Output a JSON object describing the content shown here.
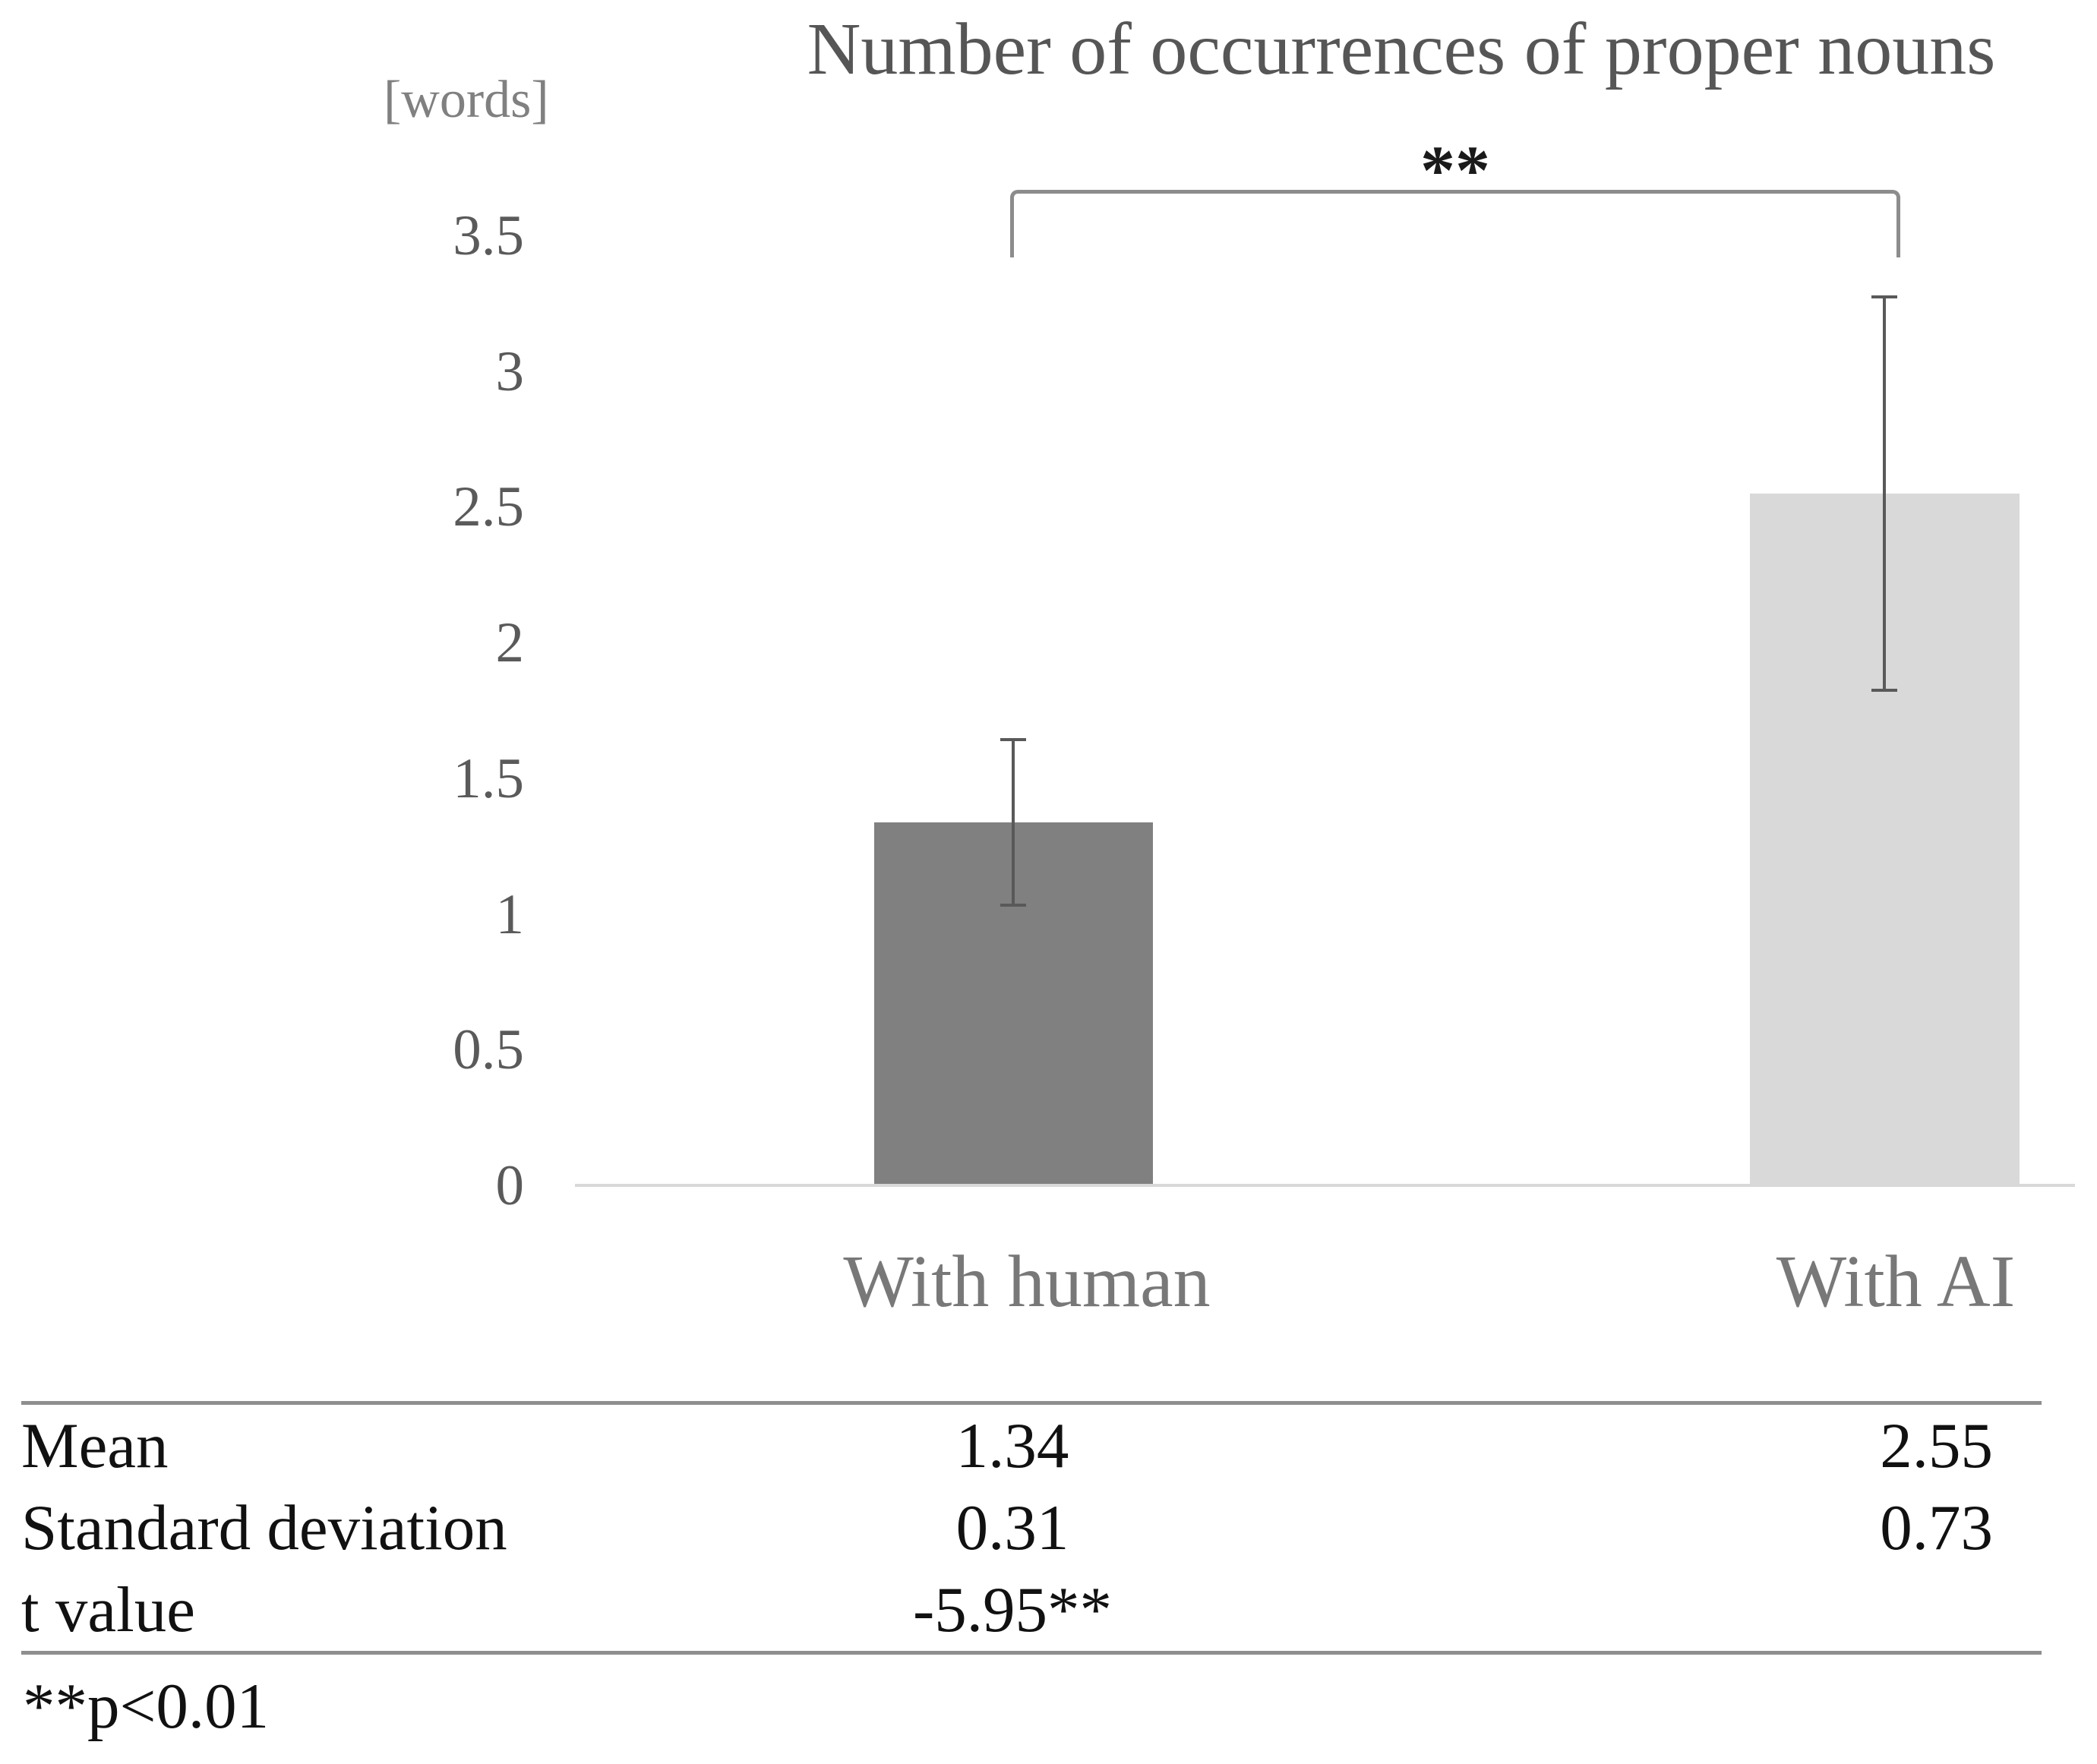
{
  "chart_data": {
    "type": "bar",
    "title": "Number of occurrences of proper nouns",
    "axis_unit_label": "[words]",
    "categories": [
      "With human",
      "With AI"
    ],
    "series": [
      {
        "name": "Mean",
        "values": [
          1.34,
          2.55
        ],
        "stdev": [
          0.31,
          0.73
        ]
      }
    ],
    "bar_colors": [
      "#808080",
      "#d9d9d9"
    ],
    "yticks": [
      "3.5",
      "3",
      "2.5",
      "2",
      "1.5",
      "1",
      "0.5",
      "0"
    ],
    "ylim": [
      0,
      3.5
    ],
    "grid": false,
    "legend": "none",
    "significance": {
      "label": "**",
      "compares": [
        "With human",
        "With AI"
      ]
    }
  },
  "stats_table": {
    "rows": [
      {
        "label": "Mean",
        "with_human": "1.34",
        "with_ai": "2.55"
      },
      {
        "label": "Standard deviation",
        "with_human": "0.31",
        "with_ai": "0.73"
      },
      {
        "label": "t value",
        "with_human": "-5.95**",
        "with_ai": ""
      }
    ],
    "footnote": "**p<0.01"
  },
  "colors": {
    "bar_with_human": "#808080",
    "bar_with_ai": "#d9d9d9",
    "error_bar": "#595959",
    "axis_line": "#d9d9d9",
    "bracket": "#8c8c8c",
    "title_text": "#565656",
    "tick_text": "#5a5a5a",
    "category_text": "#787878",
    "table_text": "#111111"
  }
}
